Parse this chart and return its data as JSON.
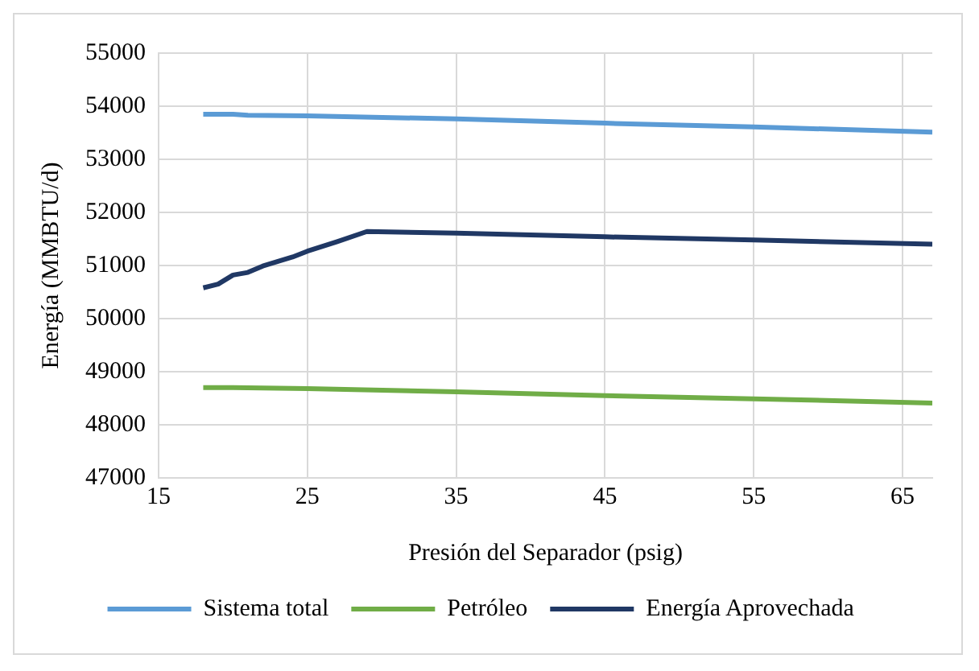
{
  "chart_data": {
    "type": "line",
    "xlabel": "Presión del Separador (psig)",
    "ylabel": "Energía (MMBTU/d)",
    "xlim": [
      15,
      67
    ],
    "xticks": [
      15,
      25,
      35,
      45,
      55,
      65
    ],
    "ylim": [
      47000,
      55000
    ],
    "yticks": [
      47000,
      48000,
      49000,
      50000,
      51000,
      52000,
      53000,
      54000,
      55000
    ],
    "grid": true,
    "legend": "bottom",
    "marker": "none",
    "line_style": "solid",
    "series": [
      {
        "name": "Sistema total",
        "color": "#5b9bd5",
        "x": [
          18,
          20,
          21,
          25,
          35,
          45,
          55,
          67
        ],
        "values": [
          53850,
          53850,
          53830,
          53820,
          53760,
          53680,
          53610,
          53510
        ]
      },
      {
        "name": "Petróleo",
        "color": "#70ad47",
        "x": [
          18,
          20,
          25,
          35,
          45,
          55,
          67
        ],
        "values": [
          48700,
          48700,
          48680,
          48620,
          48550,
          48490,
          48410
        ]
      },
      {
        "name": "Energía Aprovechada",
        "color": "#203864",
        "x": [
          18,
          19,
          20,
          21,
          22,
          24,
          25,
          27,
          29,
          35,
          45,
          55,
          67
        ],
        "values": [
          50580,
          50650,
          50820,
          50870,
          50990,
          51160,
          51270,
          51450,
          51640,
          51610,
          51540,
          51480,
          51400
        ]
      }
    ]
  }
}
